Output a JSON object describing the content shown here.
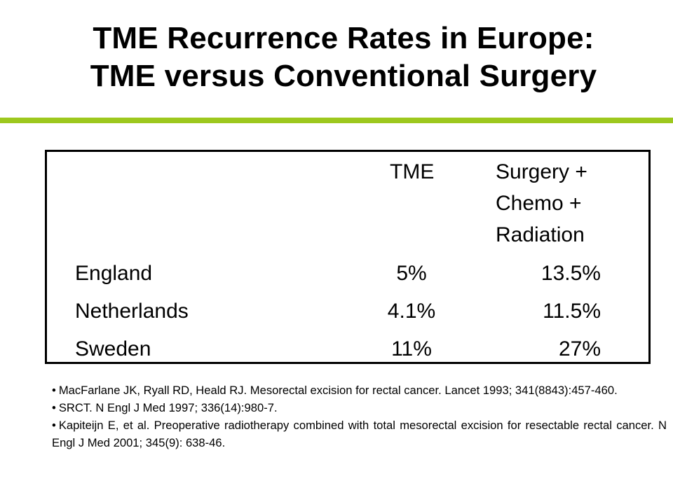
{
  "title": {
    "line1": "TME Recurrence Rates in Europe:",
    "line2": "TME versus Conventional Surgery"
  },
  "colors": {
    "accent_rule": "#9dc81e",
    "text": "#000000",
    "background": "#ffffff"
  },
  "table": {
    "headers": {
      "tme": "TME",
      "surgery_line1": "Surgery +",
      "surgery_line2": "Chemo +",
      "surgery_line3": "Radiation"
    },
    "rows": [
      {
        "country": "England",
        "tme": "5%",
        "surgery": "13.5%"
      },
      {
        "country": "Netherlands",
        "tme": "4.1%",
        "surgery": "11.5%"
      },
      {
        "country": "Sweden",
        "tme": "11%",
        "surgery": "27%"
      }
    ]
  },
  "references": [
    {
      "bullet": "•",
      "text": "MacFarlane JK, Ryall RD, Heald RJ. Mesorectal excision for rectal cancer. Lancet 1993; 341(8843):457-460."
    },
    {
      "bullet": "•",
      "text": "SRCT. N Engl J Med 1997; 336(14):980-7."
    },
    {
      "bullet": "•",
      "text": "Kapiteijn E, et al. Preoperative radiotherapy combined with total mesorectal excision for resectable rectal cancer. N Engl J Med 2001; 345(9): 638-46."
    }
  ]
}
